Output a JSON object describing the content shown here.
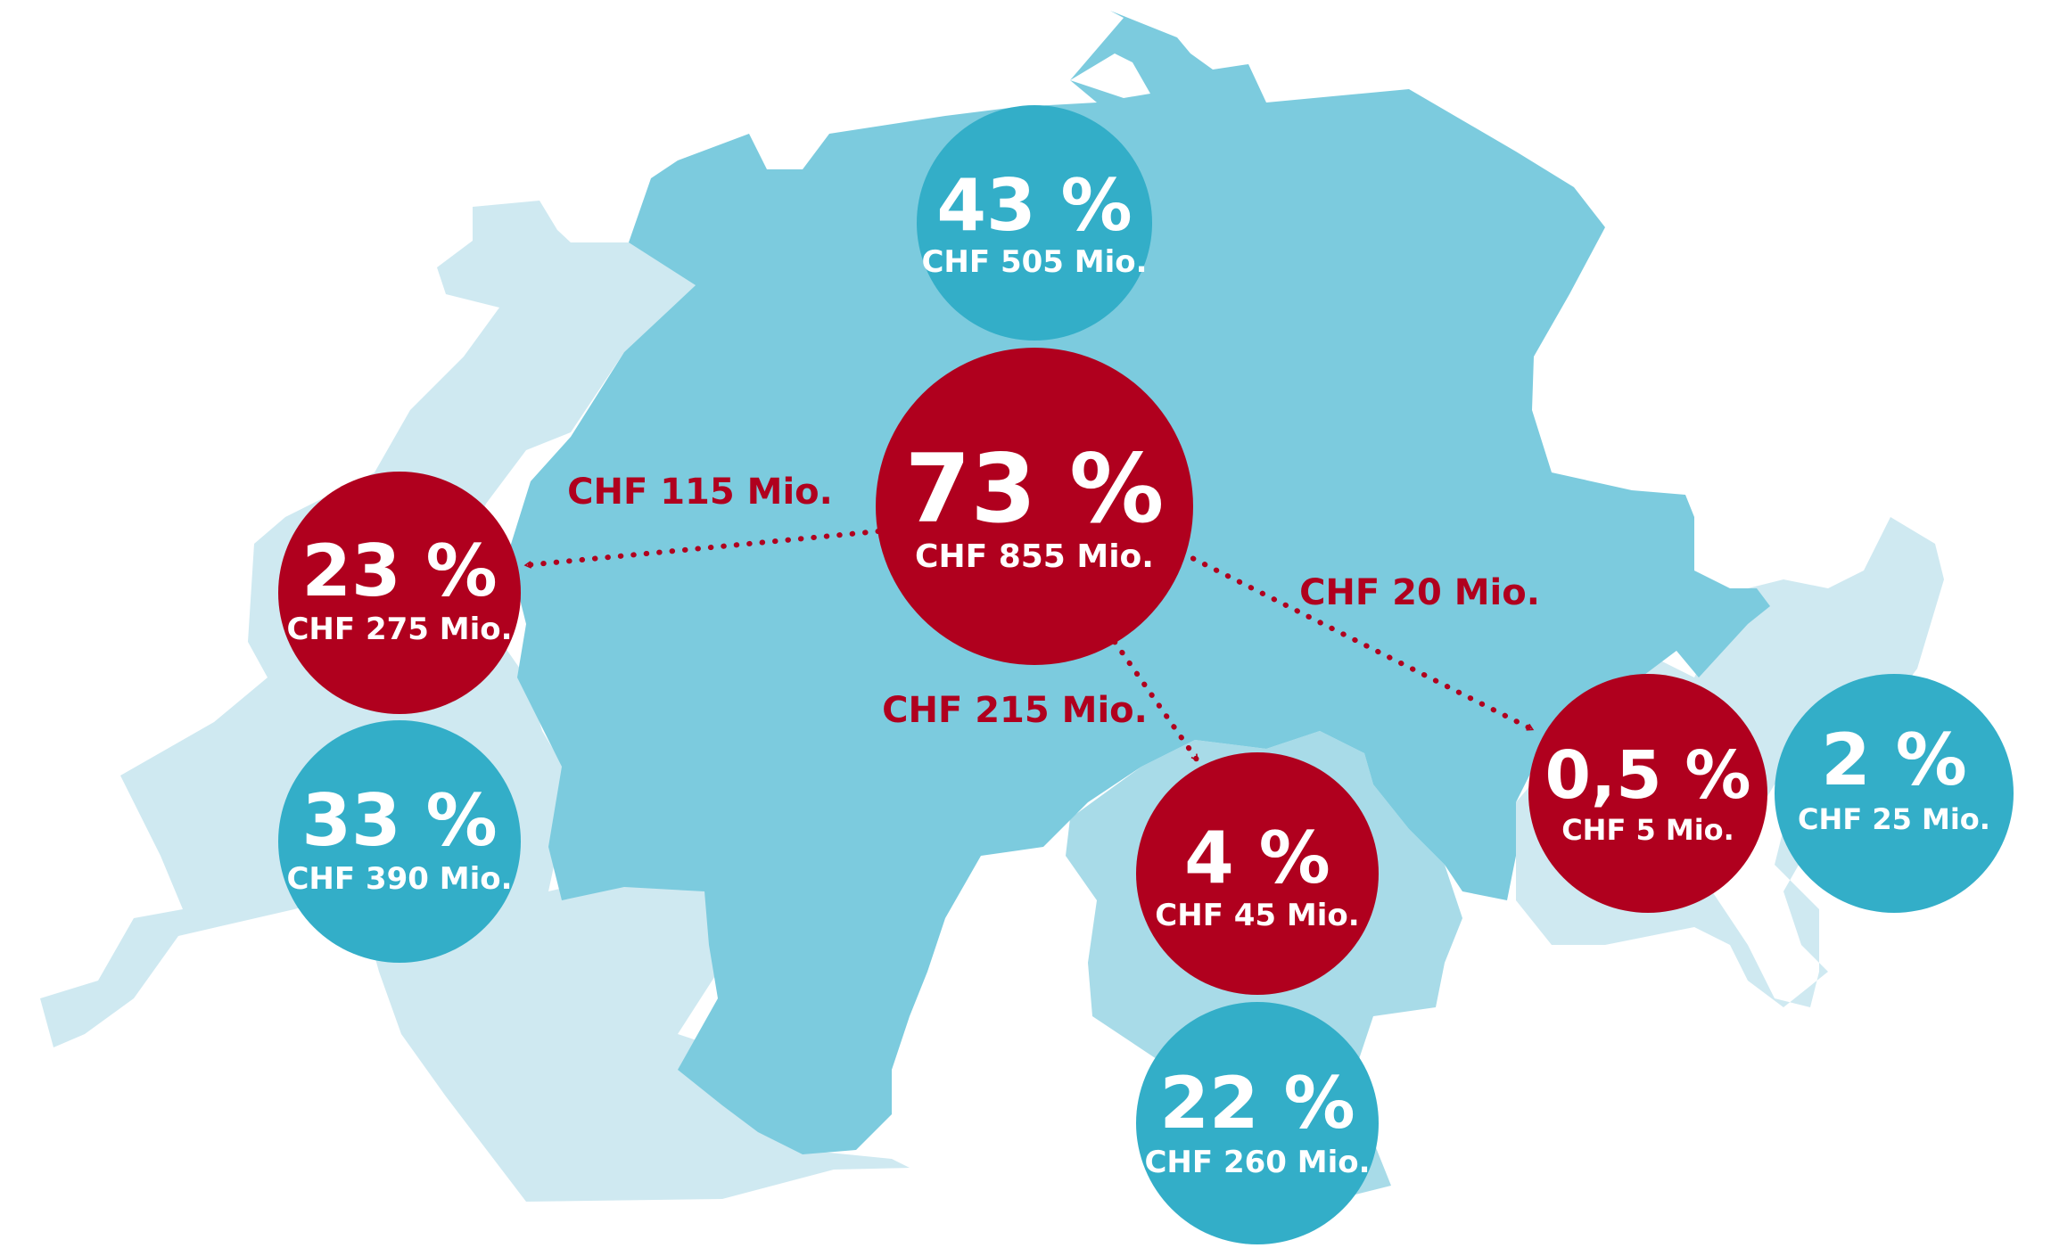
{
  "colors": {
    "region_outer": "#cfe9f1",
    "region_main": "#7ccbde",
    "region_south": "#a8dbe8",
    "bubble_blue": "#33aec8",
    "bubble_red": "#b0001e",
    "flow_text": "#b0001e"
  },
  "bubbles": {
    "north": {
      "pct": "43 %",
      "chf": "CHF 505 Mio.",
      "kind": "blue"
    },
    "center": {
      "pct": "73 %",
      "chf": "CHF 855 Mio.",
      "kind": "red"
    },
    "west_red": {
      "pct": "23 %",
      "chf": "CHF 275 Mio.",
      "kind": "red"
    },
    "west_blue": {
      "pct": "33 %",
      "chf": "CHF 390 Mio.",
      "kind": "blue"
    },
    "south_red": {
      "pct": "4 %",
      "chf": "CHF 45 Mio.",
      "kind": "red"
    },
    "south_blue": {
      "pct": "22 %",
      "chf": "CHF 260 Mio.",
      "kind": "blue"
    },
    "east_red": {
      "pct": "0,5 %",
      "chf": "CHF 5 Mio.",
      "kind": "red"
    },
    "east_blue": {
      "pct": "2 %",
      "chf": "CHF 25 Mio.",
      "kind": "blue"
    }
  },
  "flows": {
    "to_west": "CHF 115 Mio.",
    "to_south": "CHF 215 Mio.",
    "to_east": "CHF 20 Mio."
  }
}
